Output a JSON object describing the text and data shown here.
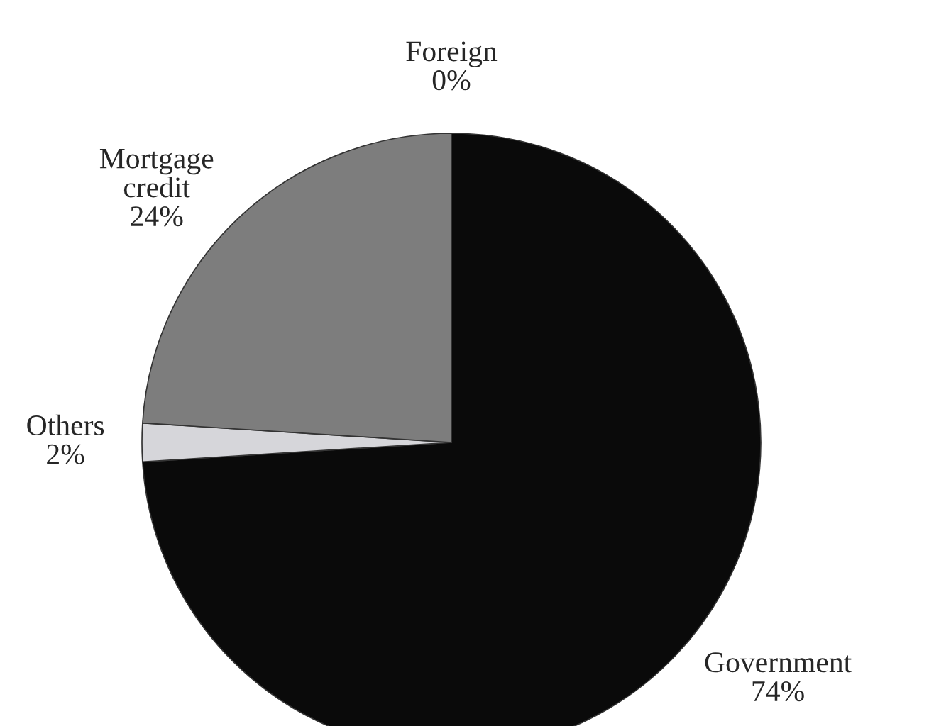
{
  "chart_data": {
    "type": "pie",
    "categories": [
      "Government",
      "Others",
      "Mortgage\ncredit",
      "Foreign"
    ],
    "values": [
      74,
      2,
      24,
      0
    ],
    "value_labels": [
      "74%",
      "2%",
      "24%",
      "0%"
    ],
    "colors": [
      "#0a0a0a",
      "#d6d6da",
      "#7d7d7d",
      "#000000"
    ],
    "legend": false
  }
}
